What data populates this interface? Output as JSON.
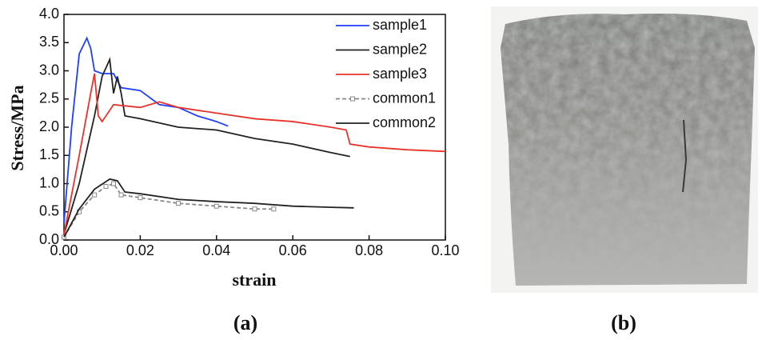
{
  "chart_data": {
    "type": "line",
    "xlabel": "strain",
    "ylabel": "Stress/MPa",
    "xlim": [
      0,
      0.1
    ],
    "ylim": [
      0,
      4
    ],
    "xticks": [
      {
        "value": 0,
        "label": "0.00"
      },
      {
        "value": 0.02,
        "label": "0.02"
      },
      {
        "value": 0.04,
        "label": "0.04"
      },
      {
        "value": 0.06,
        "label": "0.06"
      },
      {
        "value": 0.08,
        "label": "0.08"
      },
      {
        "value": 0.1,
        "label": "0.10"
      }
    ],
    "yticks": [
      {
        "value": 0,
        "label": "0.0"
      },
      0.5,
      {
        "value": 1,
        "label": "1.0"
      },
      1.5,
      {
        "value": 2,
        "label": "2.0"
      },
      2.5,
      {
        "value": 3,
        "label": "3.0"
      },
      3.5,
      {
        "value": 4,
        "label": "4.0"
      }
    ],
    "legend": "upper right",
    "series": [
      {
        "name": "sample1",
        "color": "#1f3fff",
        "x": [
          0,
          0.002,
          0.004,
          0.006,
          0.007,
          0.008,
          0.01,
          0.013,
          0.015,
          0.02,
          0.025,
          0.03,
          0.035,
          0.04,
          0.043
        ],
        "values": [
          0.3,
          2.0,
          3.3,
          3.58,
          3.4,
          3.0,
          2.95,
          2.95,
          2.7,
          2.65,
          2.4,
          2.35,
          2.2,
          2.1,
          2.02
        ]
      },
      {
        "name": "sample2",
        "color": "#222222",
        "x": [
          0,
          0.004,
          0.008,
          0.01,
          0.012,
          0.013,
          0.014,
          0.015,
          0.016,
          0.02,
          0.03,
          0.04,
          0.05,
          0.06,
          0.07,
          0.075
        ],
        "values": [
          0.1,
          1.0,
          2.2,
          2.9,
          3.2,
          2.6,
          2.9,
          2.6,
          2.2,
          2.15,
          2.0,
          1.95,
          1.8,
          1.7,
          1.55,
          1.48
        ]
      },
      {
        "name": "sample3",
        "color": "#e8332a",
        "x": [
          0,
          0.004,
          0.007,
          0.008,
          0.009,
          0.01,
          0.013,
          0.02,
          0.025,
          0.03,
          0.04,
          0.05,
          0.06,
          0.07,
          0.074,
          0.075,
          0.08,
          0.09,
          0.1
        ],
        "values": [
          0.1,
          1.5,
          2.6,
          2.95,
          2.2,
          2.1,
          2.4,
          2.35,
          2.45,
          2.35,
          2.25,
          2.15,
          2.1,
          2.0,
          1.95,
          1.7,
          1.65,
          1.6,
          1.57
        ]
      },
      {
        "name": "common1",
        "color": "#888888",
        "dashed": true,
        "markers": true,
        "x": [
          0,
          0.004,
          0.008,
          0.011,
          0.013,
          0.015,
          0.02,
          0.03,
          0.04,
          0.05,
          0.055
        ],
        "values": [
          0.05,
          0.5,
          0.8,
          0.95,
          1.0,
          0.8,
          0.75,
          0.65,
          0.6,
          0.55,
          0.55
        ]
      },
      {
        "name": "common2",
        "color": "#222222",
        "x": [
          0,
          0.004,
          0.008,
          0.012,
          0.014,
          0.016,
          0.02,
          0.03,
          0.04,
          0.05,
          0.06,
          0.07,
          0.076
        ],
        "values": [
          0.05,
          0.55,
          0.9,
          1.08,
          1.05,
          0.85,
          0.82,
          0.72,
          0.68,
          0.65,
          0.6,
          0.58,
          0.57
        ]
      }
    ]
  },
  "panel_labels": [
    "(a)",
    "(b)"
  ]
}
